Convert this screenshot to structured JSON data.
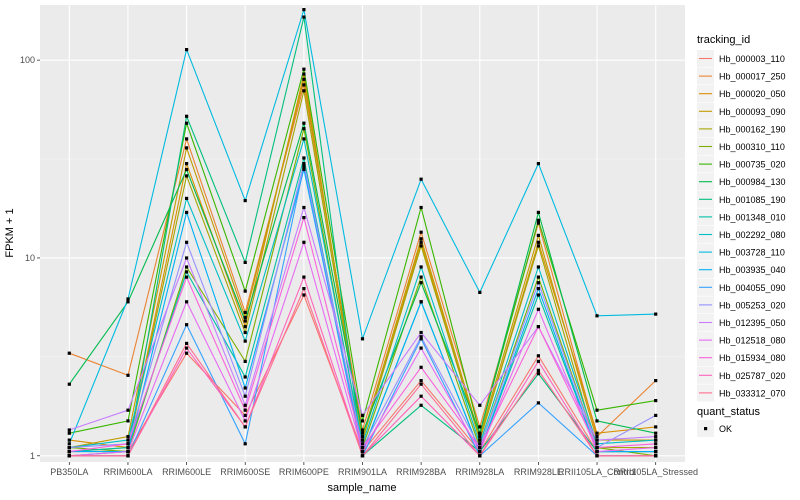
{
  "chart_data": {
    "type": "line",
    "xlabel": "sample_name",
    "ylabel": "FPKM + 1",
    "yscale": "log10",
    "ylim": [
      0.93,
      190
    ],
    "y_ticks": [
      {
        "value": 1,
        "label": "1"
      },
      {
        "value": 10,
        "label": "10"
      },
      {
        "value": 100,
        "label": "100"
      }
    ],
    "categories": [
      "PB350LA",
      "RRIM600LA",
      "RRIM600LE",
      "RRIM600SE",
      "RRIM600PE",
      "RRIM901LA",
      "RRIM928BA",
      "RRIM928LA",
      "RRIM928LE",
      "RRII105LA_Control",
      "RRII105LA_Stressed"
    ],
    "grid": true,
    "legend": {
      "position": "right",
      "title": "tracking_id",
      "shape_title": "quant_status",
      "shape_entries": [
        "OK"
      ]
    },
    "series": [
      {
        "name": "Hb_000003_110",
        "color": "#F8766D",
        "values": [
          1.05,
          1.05,
          3.3,
          1.6,
          6.5,
          1.05,
          2.4,
          1.05,
          3.2,
          1.05,
          1.05
        ]
      },
      {
        "name": "Hb_000017_250",
        "color": "#EA8331",
        "values": [
          3.3,
          2.55,
          40,
          5.3,
          75,
          1.35,
          13.5,
          1.4,
          15,
          1.25,
          2.4
        ]
      },
      {
        "name": "Hb_000020_050",
        "color": "#D89000",
        "values": [
          1.2,
          1.1,
          30,
          4.5,
          85,
          1.2,
          12,
          1.2,
          12,
          1.3,
          1.4
        ]
      },
      {
        "name": "Hb_000093_090",
        "color": "#C09B00",
        "values": [
          1.1,
          1.25,
          36,
          5.0,
          80,
          1.25,
          12.5,
          1.25,
          13,
          1.2,
          1.2
        ]
      },
      {
        "name": "Hb_000162_190",
        "color": "#A3A500",
        "values": [
          1.05,
          1.1,
          26,
          4.2,
          70,
          1.2,
          11.5,
          1.2,
          11.5,
          1.1,
          1.1
        ]
      },
      {
        "name": "Hb_000310_110",
        "color": "#7CAE00",
        "values": [
          1.1,
          1.05,
          9,
          3.0,
          45,
          1.1,
          8,
          1.1,
          8,
          1.1,
          1.0
        ]
      },
      {
        "name": "Hb_000735_020",
        "color": "#39B600",
        "values": [
          1.3,
          1.5,
          48,
          6.8,
          90,
          1.5,
          18,
          1.3,
          15.5,
          1.7,
          1.9
        ]
      },
      {
        "name": "Hb_000984_130",
        "color": "#00BB4E",
        "values": [
          2.3,
          6.0,
          28,
          4.8,
          48,
          1.3,
          7.5,
          1.3,
          17,
          1.5,
          1.3
        ]
      },
      {
        "name": "Hb_001085_190",
        "color": "#00BF7D",
        "values": [
          1.0,
          1.05,
          52,
          9.5,
          165,
          1.0,
          1.8,
          1.05,
          2.6,
          1.05,
          1.05
        ]
      },
      {
        "name": "Hb_001348_010",
        "color": "#00C1A3",
        "values": [
          1.05,
          1.1,
          8.5,
          2.5,
          32,
          1.05,
          6,
          1.05,
          6.5,
          1.05,
          1.05
        ]
      },
      {
        "name": "Hb_002292_080",
        "color": "#00BFC4",
        "values": [
          1.1,
          1.2,
          20,
          3.8,
          40,
          1.15,
          9,
          1.15,
          9,
          1.15,
          1.2
        ]
      },
      {
        "name": "Hb_003728_110",
        "color": "#00BAE0",
        "values": [
          1.15,
          6.2,
          113,
          19.5,
          180,
          3.9,
          25,
          6.7,
          30,
          5.1,
          5.2
        ]
      },
      {
        "name": "Hb_003935_040",
        "color": "#00B0F6",
        "values": [
          1.05,
          1.05,
          17,
          2.2,
          28,
          1.05,
          6,
          1.05,
          7,
          1.05,
          1.05
        ]
      },
      {
        "name": "Hb_004055_090",
        "color": "#35A2FF",
        "values": [
          1.0,
          1.0,
          4.6,
          1.15,
          29,
          1.0,
          3.9,
          1.0,
          1.85,
          1.0,
          1.0
        ]
      },
      {
        "name": "Hb_005253_020",
        "color": "#9590FF",
        "values": [
          1.1,
          1.15,
          12,
          2.0,
          30,
          1.1,
          4,
          1.1,
          7.5,
          1.1,
          1.6
        ]
      },
      {
        "name": "Hb_012395_050",
        "color": "#C77CFF",
        "values": [
          1.35,
          1.7,
          10,
          1.8,
          18,
          1.6,
          4.2,
          1.8,
          4.5,
          1.2,
          1.25
        ]
      },
      {
        "name": "Hb_012518_080",
        "color": "#E76BF3",
        "values": [
          1.0,
          1.05,
          6,
          1.5,
          12,
          1.05,
          3.5,
          1.05,
          5.5,
          1.05,
          1.1
        ]
      },
      {
        "name": "Hb_015934_080",
        "color": "#FA62DB",
        "values": [
          1.05,
          1.15,
          8,
          1.7,
          16,
          1.1,
          2.8,
          1.1,
          4.5,
          1.1,
          1.15
        ]
      },
      {
        "name": "Hb_025787_020",
        "color": "#FF62BC",
        "values": [
          1.0,
          1.0,
          3.5,
          1.4,
          8,
          1.0,
          2.0,
          1.0,
          3.0,
          1.0,
          1.0
        ]
      },
      {
        "name": "Hb_033312_070",
        "color": "#FF6C91",
        "values": [
          1.0,
          1.0,
          3.7,
          1.4,
          7,
          1.0,
          2.3,
          1.0,
          2.7,
          1.0,
          1.0
        ]
      }
    ]
  }
}
